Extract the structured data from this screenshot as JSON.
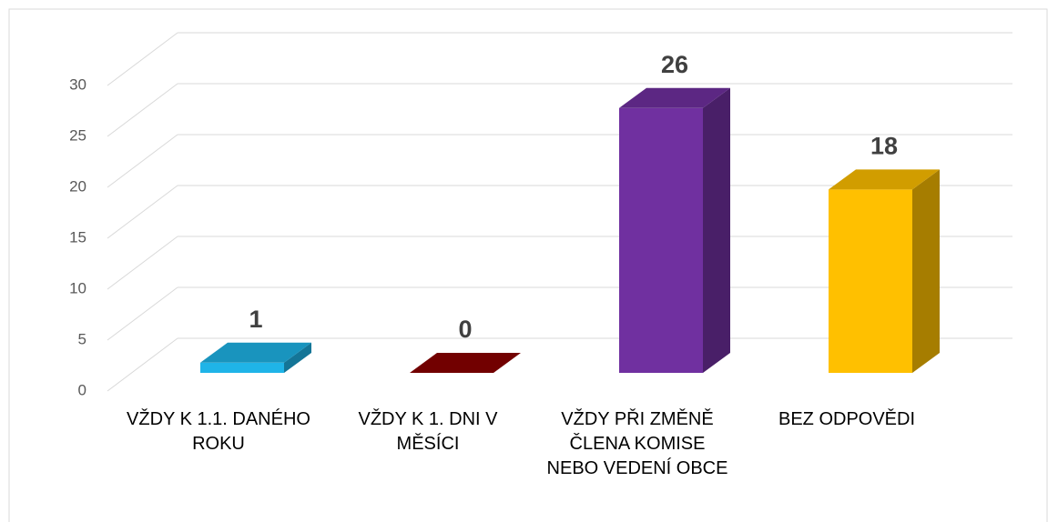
{
  "chart_data": {
    "type": "bar3d",
    "categories": [
      "VŽDY K 1.1. DANÉHO ROKU",
      "VŽDY K 1. DNI V MĚSÍCI",
      "VŽDY PŘI ZMĚNĚ ČLENA KOMISE NEBO VEDENÍ OBCE",
      "BEZ ODPOVĚDI"
    ],
    "values": [
      1,
      0,
      26,
      18
    ],
    "colors": [
      "#1fb4e8",
      "#8b0000",
      "#7030a0",
      "#ffc000"
    ],
    "ylim": [
      0,
      30
    ],
    "yticks": [
      0,
      5,
      10,
      15,
      20,
      25,
      30
    ],
    "grid": true
  }
}
